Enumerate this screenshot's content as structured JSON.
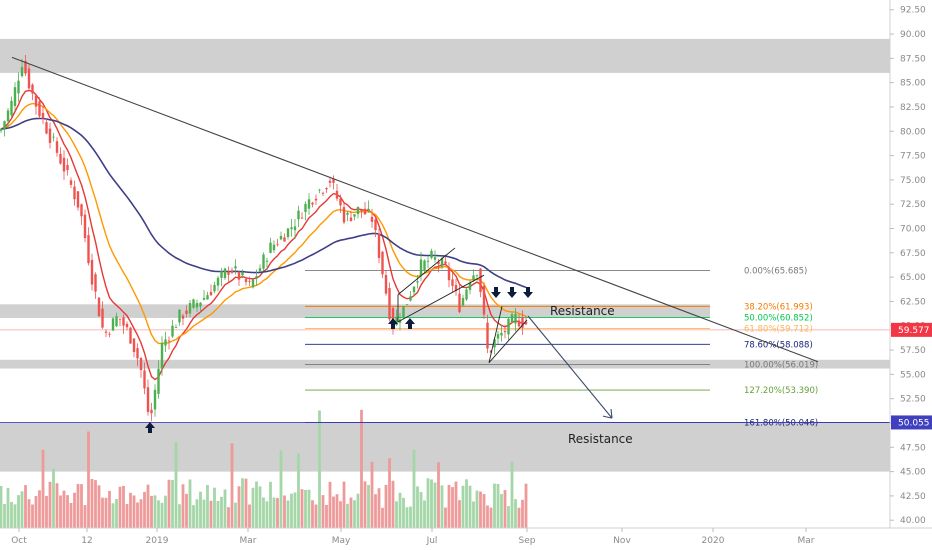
{
  "chart_data": {
    "type": "candlestick",
    "y_axis": {
      "ticks": [
        40.0,
        42.5,
        45.0,
        47.5,
        50.0,
        52.5,
        55.0,
        57.5,
        60.0,
        62.5,
        65.0,
        67.5,
        70.0,
        72.5,
        75.0,
        77.5,
        80.0,
        82.5,
        85.0,
        87.5,
        90.0,
        92.5
      ],
      "tick_labels": [
        "40.00",
        "42.50",
        "45.00",
        "47.50",
        "50.00",
        "52.50",
        "55.00",
        "57.50",
        "60.00",
        "62.50",
        "65.00",
        "67.50",
        "70.00",
        "72.50",
        "75.00",
        "77.50",
        "80.00",
        "82.50",
        "85.00",
        "87.50",
        "90.00",
        "92.50"
      ],
      "range": [
        39.2,
        93.5
      ]
    },
    "x_axis": {
      "tick_labels": [
        "Oct",
        "12",
        "2019",
        "Mar",
        "May",
        "Jul",
        "Sep",
        "Nov",
        "2020",
        "Mar"
      ]
    },
    "price_tags": [
      {
        "value": 59.577,
        "label": "59.577",
        "color": "#f23645"
      },
      {
        "value": 50.055,
        "label": "50.055",
        "color": "#3f3fbf"
      }
    ],
    "fib_levels": [
      {
        "value": 65.685,
        "label": "0.00%(65.685)",
        "color": "#787878"
      },
      {
        "value": 61.993,
        "label": "38.20%(61.993)",
        "color": "#f57c00"
      },
      {
        "value": 60.852,
        "label": "50.00%(60.852)",
        "color": "#00c853"
      },
      {
        "value": 59.712,
        "label": "61.80%(59.712)",
        "color": "#ffb74d"
      },
      {
        "value": 58.088,
        "label": "78.60%(58.088)",
        "color": "#1a237e"
      },
      {
        "value": 56.019,
        "label": "100.00%(56.019)",
        "color": "#787878"
      },
      {
        "value": 53.39,
        "label": "127.20%(53.390)",
        "color": "#689f38"
      },
      {
        "value": 50.046,
        "label": "161.80%(50.046)",
        "color": "#1a237e"
      }
    ],
    "zones": [
      {
        "from": 86.0,
        "to": 89.5
      },
      {
        "from": 60.8,
        "to": 62.2
      },
      {
        "from": 55.6,
        "to": 56.5
      },
      {
        "from": 45.0,
        "to": 50.0
      }
    ],
    "annotations": [
      "Resistance",
      "Resistance"
    ],
    "colors": {
      "up": "#4caf50",
      "down": "#ef5350",
      "ema_fast": "#e53935",
      "ema_mid": "#ff9800",
      "ema_slow": "#3f3f86",
      "trendline": "#444444",
      "volume_up": "#a5d6a7",
      "volume_down": "#ef9a9a",
      "zone": "#c8c8c8"
    }
  }
}
